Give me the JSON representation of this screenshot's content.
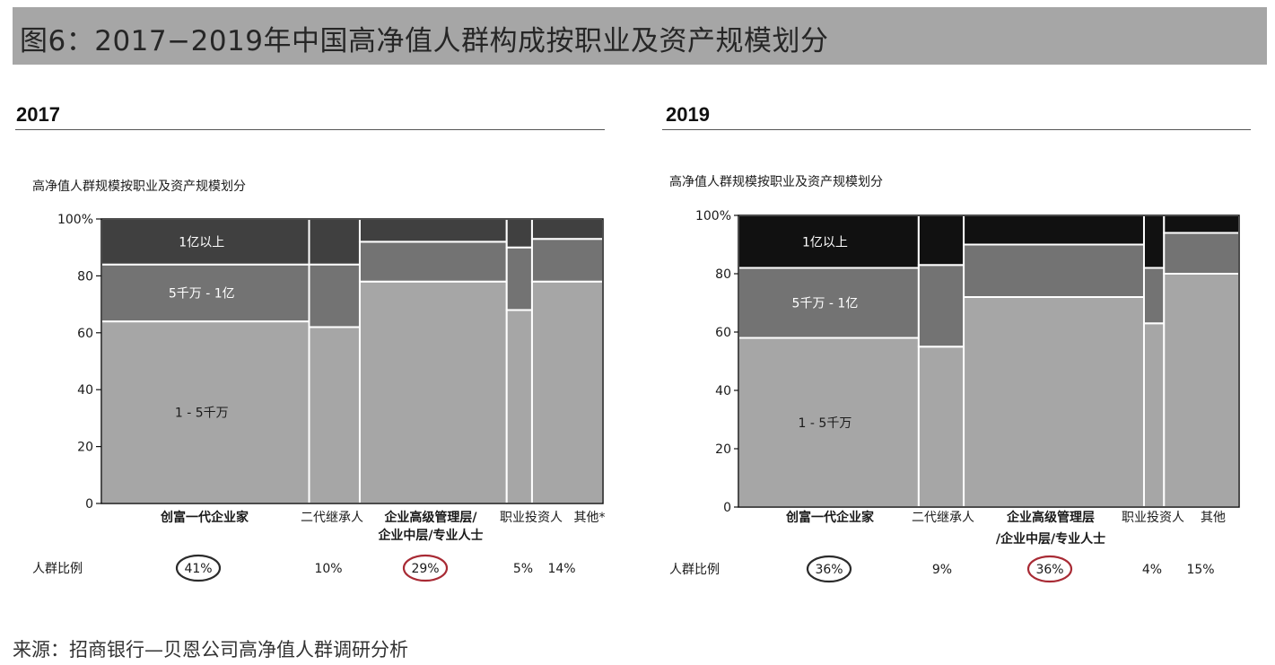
{
  "title": "图6：2017−2019年中国高净值人群构成按职业及资产规模划分",
  "source": "来源：招商银行—贝恩公司高净值人群调研分析",
  "colors": {
    "title_bg": "#a6a6a6",
    "band_low": "#a6a6a6",
    "band_mid": "#737373",
    "band_top_2017": "#404040",
    "band_top_2019": "#111111",
    "circle_dark": "#2b2b2b",
    "circle_red": "#a82a34"
  },
  "chart_data": [
    {
      "type": "mosaic",
      "year_label": "2017",
      "subtitle": "高净值人群规模按职业及资产规模划分",
      "ylim": [
        0,
        100
      ],
      "yticks": [
        "0",
        "20",
        "40",
        "60",
        "80",
        "100%"
      ],
      "band_labels": [
        "1 - 5千万",
        "5千万 - 1亿",
        "1亿以上"
      ],
      "row_label": "人群比例",
      "categories": [
        {
          "name": "创富一代企业家",
          "share": 41,
          "share_label": "41%",
          "bold": true,
          "circle": "dark",
          "stack": [
            64,
            20,
            16
          ]
        },
        {
          "name": "二代继承人",
          "share": 10,
          "share_label": "10%",
          "bold": false,
          "circle": "none",
          "stack": [
            62,
            22,
            16
          ]
        },
        {
          "name": "企业高级管理层/\n企业中层/专业人士",
          "share": 29,
          "share_label": "29%",
          "bold": true,
          "circle": "red",
          "stack": [
            78,
            14,
            8
          ]
        },
        {
          "name": "职业投资人",
          "share": 5,
          "share_label": "5%",
          "bold": false,
          "circle": "none",
          "stack": [
            68,
            22,
            10
          ]
        },
        {
          "name": "其他*",
          "share": 14,
          "share_label": "14%",
          "bold": false,
          "circle": "none",
          "stack": [
            78,
            15,
            7
          ]
        }
      ]
    },
    {
      "type": "mosaic",
      "year_label": "2019",
      "subtitle": "高净值人群规模按职业及资产规模划分",
      "ylim": [
        0,
        100
      ],
      "yticks": [
        "0",
        "20",
        "40",
        "60",
        "80",
        "100%"
      ],
      "band_labels": [
        "1 - 5千万",
        "5千万 - 1亿",
        "1亿以上"
      ],
      "row_label": "人群比例",
      "categories": [
        {
          "name": "创富一代企业家",
          "share": 36,
          "share_label": "36%",
          "bold": true,
          "circle": "dark",
          "stack": [
            58,
            24,
            18
          ]
        },
        {
          "name": "二代继承人",
          "share": 9,
          "share_label": "9%",
          "bold": false,
          "circle": "none",
          "stack": [
            55,
            28,
            17
          ]
        },
        {
          "name": "企业高级管理层\n/企业中层/专业人士",
          "share": 36,
          "share_label": "36%",
          "bold": true,
          "circle": "red",
          "stack": [
            72,
            18,
            10
          ]
        },
        {
          "name": "职业投资人",
          "share": 4,
          "share_label": "4%",
          "bold": false,
          "circle": "none",
          "stack": [
            63,
            19,
            18
          ]
        },
        {
          "name": "其他",
          "share": 15,
          "share_label": "15%",
          "bold": false,
          "circle": "none",
          "stack": [
            80,
            14,
            6
          ]
        }
      ]
    }
  ]
}
